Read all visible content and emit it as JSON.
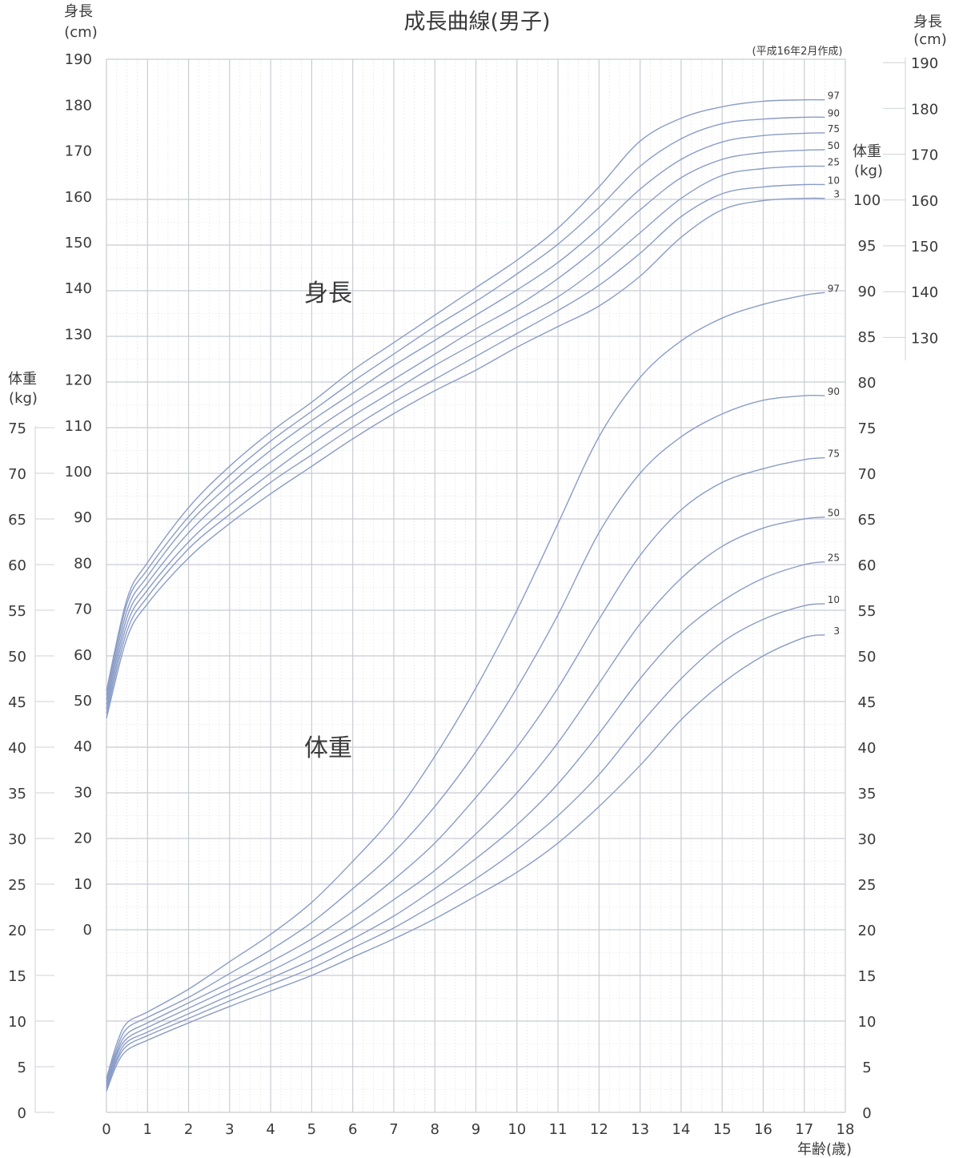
{
  "chart_data": {
    "type": "line",
    "title": "成長曲線(男子)",
    "note": "(平成16年2月作成)",
    "xlabel": "年齢(歳)",
    "xlim": [
      0,
      18
    ],
    "x_ticks": [
      "0",
      "1",
      "2",
      "3",
      "4",
      "5",
      "6",
      "7",
      "8",
      "9",
      "10",
      "11",
      "12",
      "13",
      "14",
      "15",
      "16",
      "17",
      "18"
    ],
    "grid": true,
    "height": {
      "label": "身長",
      "axis_label_line1": "身長",
      "axis_label_line2": "(cm)",
      "ylim": [
        0,
        190
      ],
      "left_ticks": [
        "0",
        "10",
        "20",
        "30",
        "40",
        "50",
        "60",
        "70",
        "80",
        "90",
        "100",
        "110",
        "120",
        "130",
        "140",
        "150",
        "160",
        "170",
        "180",
        "190"
      ],
      "right_ticks": [
        "130",
        "140",
        "150",
        "160",
        "170",
        "180",
        "190"
      ],
      "percentiles": [
        "97",
        "90",
        "75",
        "50",
        "25",
        "10",
        "3"
      ],
      "x": [
        0,
        0.5,
        1,
        2,
        3,
        4,
        5,
        6,
        7,
        8,
        9,
        10,
        11,
        12,
        13,
        14,
        15,
        16,
        17,
        17.5
      ],
      "series": [
        {
          "name": "97",
          "values": [
            52,
            72,
            80,
            92,
            101,
            108.5,
            115,
            122,
            128,
            134,
            140,
            146,
            153,
            162,
            172,
            177,
            179.5,
            180.7,
            181,
            181
          ]
        },
        {
          "name": "90",
          "values": [
            51,
            71,
            78.5,
            90,
            99,
            106.5,
            113,
            119.5,
            125.5,
            131.5,
            137,
            143,
            149.5,
            157.5,
            166.5,
            172.5,
            175.8,
            176.8,
            177.2,
            177.2
          ]
        },
        {
          "name": "75",
          "values": [
            50,
            69.5,
            77,
            88.5,
            97,
            104.5,
            111,
            117,
            123,
            128.5,
            134,
            139.5,
            145.5,
            153,
            161.5,
            168,
            171.8,
            173.2,
            173.7,
            173.8
          ]
        },
        {
          "name": "50",
          "values": [
            49,
            68,
            75.5,
            86.5,
            95,
            102,
            108.5,
            114.5,
            120,
            125.5,
            131,
            136,
            142,
            149,
            157,
            164,
            168,
            169.5,
            170,
            170.1
          ]
        },
        {
          "name": "25",
          "values": [
            48,
            66.5,
            74,
            84.5,
            92.5,
            99.5,
            106,
            112,
            117.5,
            123,
            128,
            133,
            138,
            144.5,
            152,
            159.5,
            164.5,
            166,
            166.5,
            166.5
          ]
        },
        {
          "name": "10",
          "values": [
            47,
            65,
            72.5,
            83,
            90.5,
            97.5,
            103.5,
            109.5,
            115,
            120,
            125,
            130,
            135,
            140.5,
            147.5,
            155.5,
            160.5,
            162,
            162.5,
            162.5
          ]
        },
        {
          "name": "3",
          "values": [
            46,
            63.5,
            71,
            81,
            88.5,
            95,
            101,
            107,
            112.5,
            117.5,
            122,
            127,
            131.5,
            136,
            142.5,
            151,
            157,
            159,
            159.5,
            159.5
          ]
        }
      ]
    },
    "weight": {
      "label": "体重",
      "axis_label_line1": "体重",
      "axis_label_line2": "(kg)",
      "ylim": [
        0,
        100
      ],
      "left_ticks": [
        "0",
        "5",
        "10",
        "15",
        "20",
        "25",
        "30",
        "35",
        "40",
        "45",
        "50",
        "55",
        "60",
        "65",
        "70",
        "75"
      ],
      "right_ticks": [
        "0",
        "5",
        "10",
        "15",
        "20",
        "25",
        "30",
        "35",
        "40",
        "45",
        "50",
        "55",
        "60",
        "65",
        "70",
        "75",
        "80",
        "85",
        "90",
        "95",
        "100"
      ],
      "percentiles": [
        "97",
        "90",
        "75",
        "50",
        "25",
        "10",
        "3"
      ],
      "x": [
        0,
        0.25,
        0.5,
        1,
        2,
        3,
        4,
        5,
        6,
        7,
        8,
        9,
        10,
        11,
        12,
        13,
        14,
        15,
        16,
        17,
        17.5
      ],
      "series": [
        {
          "name": "97",
          "values": [
            3.7,
            7.5,
            9.8,
            11,
            13.5,
            16.5,
            19.5,
            23,
            27.5,
            32.5,
            39,
            46.5,
            55,
            64.5,
            74,
            80.5,
            84.5,
            87,
            88.5,
            89.5,
            89.8
          ]
        },
        {
          "name": "90",
          "values": [
            3.4,
            7,
            9.2,
            10.4,
            12.6,
            15.2,
            17.8,
            20.8,
            24.5,
            28.5,
            33.5,
            39.5,
            46.5,
            54.5,
            63.5,
            70,
            74,
            76.5,
            78,
            78.5,
            78.5
          ]
        },
        {
          "name": "75",
          "values": [
            3.2,
            6.6,
            8.6,
            9.8,
            12,
            14.2,
            16.5,
            19,
            22,
            25.5,
            29.5,
            34.5,
            40,
            46.5,
            54,
            61,
            66,
            69,
            70.5,
            71.5,
            71.7
          ]
        },
        {
          "name": "50",
          "values": [
            3,
            6.3,
            8.1,
            9.3,
            11.4,
            13.5,
            15.5,
            17.8,
            20.3,
            23.3,
            26.5,
            30.5,
            35,
            40.5,
            47,
            53.5,
            58.5,
            62,
            64,
            65,
            65.2
          ]
        },
        {
          "name": "25",
          "values": [
            2.8,
            5.9,
            7.7,
            8.8,
            10.8,
            12.8,
            14.7,
            16.7,
            19,
            21.5,
            24.5,
            27.8,
            31.5,
            36,
            41.5,
            47.5,
            52.5,
            56,
            58.5,
            60,
            60.3
          ]
        },
        {
          "name": "10",
          "values": [
            2.6,
            5.6,
            7.3,
            8.4,
            10.3,
            12.2,
            14,
            15.8,
            18,
            20.2,
            22.8,
            25.6,
            28.8,
            32.5,
            37,
            42.5,
            47.5,
            51.5,
            54,
            55.5,
            55.7
          ]
        },
        {
          "name": "3",
          "values": [
            2.3,
            5.2,
            6.8,
            7.9,
            9.8,
            11.6,
            13.3,
            15,
            17,
            19,
            21.2,
            23.7,
            26.3,
            29.5,
            33.5,
            38,
            43,
            47,
            50,
            52,
            52.3
          ]
        }
      ]
    },
    "line_color": "#8a9cc6",
    "major_grid_color": "#c9ccd3",
    "minor_grid_color": "#e2e4e8"
  }
}
